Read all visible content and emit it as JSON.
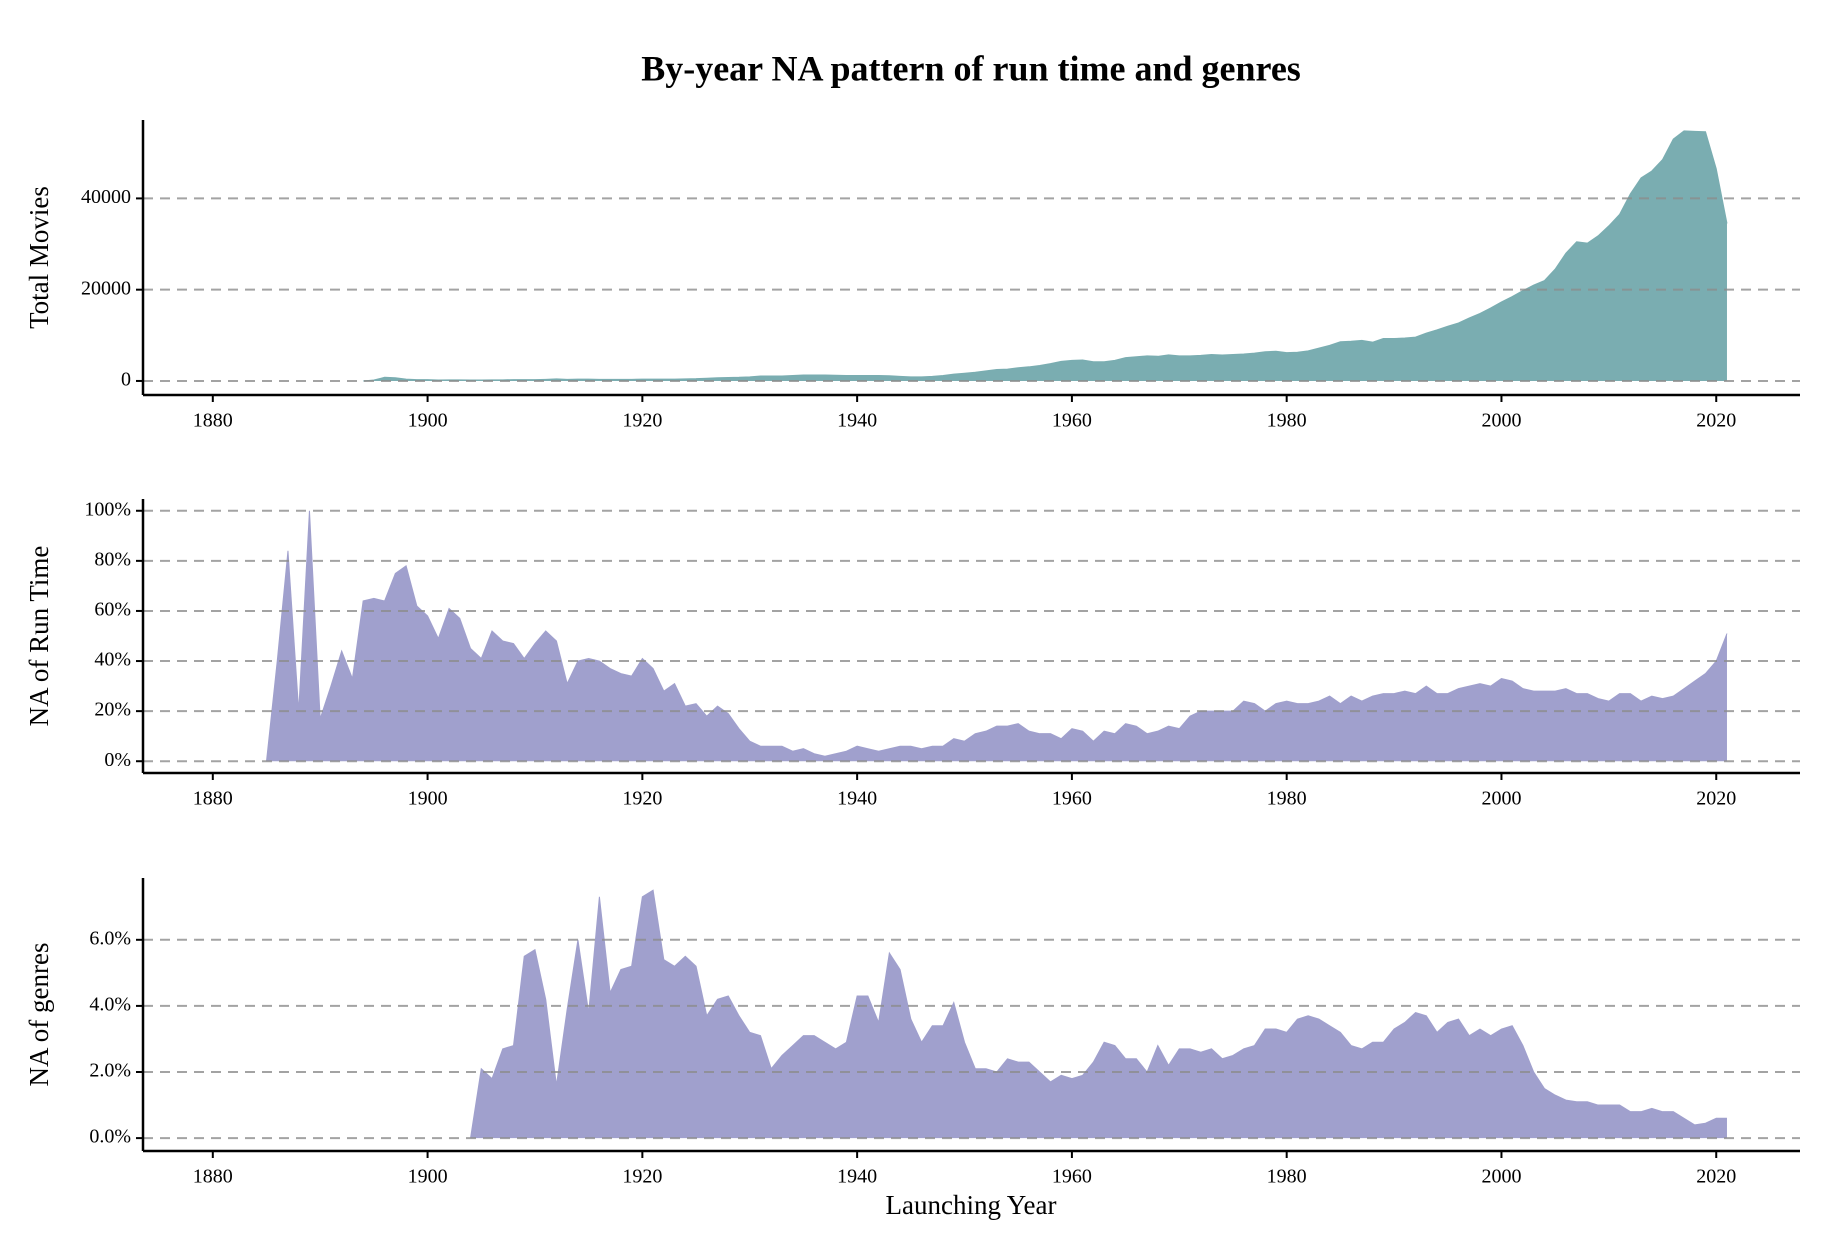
{
  "chart_data": [
    {
      "type": "area",
      "title": "By-year NA pattern of run time and genres",
      "ylabel": "Total Movies",
      "color": "#7aadb1",
      "grid": true,
      "x": [
        1894,
        1895,
        1896,
        1897,
        1898,
        1899,
        1900,
        1901,
        1902,
        1903,
        1904,
        1905,
        1906,
        1907,
        1908,
        1909,
        1910,
        1911,
        1912,
        1913,
        1914,
        1915,
        1916,
        1917,
        1918,
        1919,
        1920,
        1921,
        1922,
        1923,
        1924,
        1925,
        1926,
        1927,
        1928,
        1929,
        1930,
        1931,
        1932,
        1933,
        1934,
        1935,
        1936,
        1937,
        1938,
        1939,
        1940,
        1941,
        1942,
        1943,
        1944,
        1945,
        1946,
        1947,
        1948,
        1949,
        1950,
        1951,
        1952,
        1953,
        1954,
        1955,
        1956,
        1957,
        1958,
        1959,
        1960,
        1961,
        1962,
        1963,
        1964,
        1965,
        1966,
        1967,
        1968,
        1969,
        1970,
        1971,
        1972,
        1973,
        1974,
        1975,
        1976,
        1977,
        1978,
        1979,
        1980,
        1981,
        1982,
        1983,
        1984,
        1985,
        1986,
        1987,
        1988,
        1989,
        1990,
        1991,
        1992,
        1993,
        1994,
        1995,
        1996,
        1997,
        1998,
        1999,
        2000,
        2001,
        2002,
        2003,
        2004,
        2005,
        2006,
        2007,
        2008,
        2009,
        2010,
        2011,
        2012,
        2013,
        2014,
        2015,
        2016,
        2017,
        2018,
        2019,
        2020,
        2021
      ],
      "values": [
        0,
        200,
        800,
        700,
        400,
        300,
        300,
        200,
        250,
        250,
        200,
        200,
        250,
        250,
        300,
        300,
        300,
        350,
        450,
        350,
        400,
        400,
        350,
        350,
        350,
        350,
        400,
        400,
        400,
        400,
        450,
        500,
        600,
        700,
        750,
        800,
        900,
        1100,
        1100,
        1100,
        1200,
        1300,
        1300,
        1300,
        1250,
        1200,
        1200,
        1200,
        1200,
        1150,
        1000,
        900,
        900,
        1000,
        1200,
        1500,
        1700,
        1900,
        2200,
        2500,
        2600,
        2900,
        3100,
        3400,
        3800,
        4300,
        4500,
        4600,
        4200,
        4200,
        4500,
        5100,
        5300,
        5500,
        5400,
        5700,
        5500,
        5500,
        5600,
        5800,
        5700,
        5800,
        5900,
        6100,
        6400,
        6500,
        6200,
        6300,
        6600,
        7200,
        7800,
        8600,
        8700,
        8900,
        8500,
        9300,
        9300,
        9400,
        9600,
        10500,
        11200,
        12000,
        12700,
        13800,
        14800,
        16000,
        17300,
        18500,
        19800,
        21000,
        22000,
        24500,
        28000,
        30500,
        30200,
        31800,
        34000,
        36500,
        41000,
        44500,
        46000,
        48500,
        53000,
        54800,
        54700,
        54600,
        46500,
        34500
      ],
      "xlim": [
        1873.5,
        2027.8
      ],
      "xticks": [
        1880,
        1900,
        1920,
        1940,
        1960,
        1980,
        2000,
        2020
      ],
      "ylim": [
        -3077,
        57180
      ],
      "yticks": [
        0,
        20000,
        40000
      ]
    },
    {
      "type": "area",
      "ylabel": "NA of Run Time",
      "color": "#a0a0cd",
      "grid": true,
      "x": [
        1885,
        1886,
        1887,
        1888,
        1889,
        1890,
        1891,
        1892,
        1893,
        1894,
        1895,
        1896,
        1897,
        1898,
        1899,
        1900,
        1901,
        1902,
        1903,
        1904,
        1905,
        1906,
        1907,
        1908,
        1909,
        1910,
        1911,
        1912,
        1913,
        1914,
        1915,
        1916,
        1917,
        1918,
        1919,
        1920,
        1921,
        1922,
        1923,
        1924,
        1925,
        1926,
        1927,
        1928,
        1929,
        1930,
        1931,
        1932,
        1933,
        1934,
        1935,
        1936,
        1937,
        1938,
        1939,
        1940,
        1941,
        1942,
        1943,
        1944,
        1945,
        1946,
        1947,
        1948,
        1949,
        1950,
        1951,
        1952,
        1953,
        1954,
        1955,
        1956,
        1957,
        1958,
        1959,
        1960,
        1961,
        1962,
        1963,
        1964,
        1965,
        1966,
        1967,
        1968,
        1969,
        1970,
        1971,
        1972,
        1973,
        1974,
        1975,
        1976,
        1977,
        1978,
        1979,
        1980,
        1981,
        1982,
        1983,
        1984,
        1985,
        1986,
        1987,
        1988,
        1989,
        1990,
        1991,
        1992,
        1993,
        1994,
        1995,
        1996,
        1997,
        1998,
        1999,
        2000,
        2001,
        2002,
        2003,
        2004,
        2005,
        2006,
        2007,
        2008,
        2009,
        2010,
        2011,
        2012,
        2013,
        2014,
        2015,
        2016,
        2017,
        2018,
        2019,
        2020,
        2021
      ],
      "values": [
        0,
        40,
        84,
        20,
        100,
        17,
        30,
        44,
        33,
        64,
        65,
        64,
        75,
        78,
        62,
        58,
        49,
        61,
        57,
        45,
        41,
        52,
        48,
        47,
        41,
        47,
        52,
        48,
        31,
        40,
        41,
        40,
        37,
        35,
        34,
        41,
        37,
        28,
        31,
        22,
        23,
        18,
        22,
        19,
        13,
        8,
        6,
        6,
        6,
        4,
        5,
        3,
        2,
        3,
        4,
        6,
        5,
        4,
        5,
        6,
        6,
        5,
        6,
        6,
        9,
        8,
        11,
        12,
        14,
        14,
        15,
        12,
        11,
        11,
        9,
        13,
        12,
        8,
        12,
        11,
        15,
        14,
        11,
        12,
        14,
        13,
        18,
        20,
        20,
        20,
        20,
        24,
        23,
        20,
        23,
        24,
        23,
        23,
        24,
        26,
        23,
        26,
        24,
        26,
        27,
        27,
        28,
        27,
        30,
        27,
        27,
        29,
        30,
        31,
        30,
        33,
        32,
        29,
        28,
        28,
        28,
        29,
        27,
        27,
        25,
        24,
        27,
        27,
        24,
        26,
        25,
        26,
        29,
        32,
        35,
        40,
        51
      ],
      "xlim": [
        1873.5,
        2027.8
      ],
      "xticks": [
        1880,
        1900,
        1920,
        1940,
        1960,
        1980,
        2000,
        2020
      ],
      "ylim": [
        -4.7,
        104.7
      ],
      "yticks": [
        {
          "value": 0,
          "label": "0%"
        },
        {
          "value": 20,
          "label": "20%"
        },
        {
          "value": 40,
          "label": "40%"
        },
        {
          "value": 60,
          "label": "60%"
        },
        {
          "value": 80,
          "label": "80%"
        },
        {
          "value": 100,
          "label": "100%"
        }
      ]
    },
    {
      "type": "area",
      "ylabel": "NA of genres",
      "xlabel": "Launching Year",
      "color": "#a0a0cd",
      "grid": true,
      "x": [
        1904,
        1905,
        1906,
        1907,
        1908,
        1909,
        1910,
        1911,
        1912,
        1913,
        1914,
        1915,
        1916,
        1917,
        1918,
        1919,
        1920,
        1921,
        1922,
        1923,
        1924,
        1925,
        1926,
        1927,
        1928,
        1929,
        1930,
        1931,
        1932,
        1933,
        1934,
        1935,
        1936,
        1937,
        1938,
        1939,
        1940,
        1941,
        1942,
        1943,
        1944,
        1945,
        1946,
        1947,
        1948,
        1949,
        1950,
        1951,
        1952,
        1953,
        1954,
        1955,
        1956,
        1957,
        1958,
        1959,
        1960,
        1961,
        1962,
        1963,
        1964,
        1965,
        1966,
        1967,
        1968,
        1969,
        1970,
        1971,
        1972,
        1973,
        1974,
        1975,
        1976,
        1977,
        1978,
        1979,
        1980,
        1981,
        1982,
        1983,
        1984,
        1985,
        1986,
        1987,
        1988,
        1989,
        1990,
        1991,
        1992,
        1993,
        1994,
        1995,
        1996,
        1997,
        1998,
        1999,
        2000,
        2001,
        2002,
        2003,
        2004,
        2005,
        2006,
        2007,
        2008,
        2009,
        2010,
        2011,
        2012,
        2013,
        2014,
        2015,
        2016,
        2017,
        2018,
        2019,
        2020,
        2021
      ],
      "values": [
        0,
        2.1,
        1.8,
        2.7,
        2.8,
        5.5,
        5.7,
        4.2,
        1.6,
        3.9,
        6.0,
        3.8,
        7.3,
        4.4,
        5.1,
        5.2,
        7.3,
        7.5,
        5.4,
        5.2,
        5.5,
        5.2,
        3.7,
        4.2,
        4.3,
        3.7,
        3.2,
        3.1,
        2.1,
        2.5,
        2.8,
        3.1,
        3.1,
        2.9,
        2.7,
        2.9,
        4.3,
        4.3,
        3.5,
        5.6,
        5.1,
        3.6,
        2.9,
        3.4,
        3.4,
        4.1,
        2.9,
        2.1,
        2.1,
        2.0,
        2.4,
        2.3,
        2.3,
        2.0,
        1.7,
        1.9,
        1.8,
        1.9,
        2.3,
        2.9,
        2.8,
        2.4,
        2.4,
        2.0,
        2.8,
        2.2,
        2.7,
        2.7,
        2.6,
        2.7,
        2.4,
        2.5,
        2.7,
        2.8,
        3.3,
        3.3,
        3.2,
        3.6,
        3.7,
        3.6,
        3.4,
        3.2,
        2.8,
        2.7,
        2.9,
        2.9,
        3.3,
        3.5,
        3.8,
        3.7,
        3.2,
        3.5,
        3.6,
        3.1,
        3.3,
        3.1,
        3.3,
        3.4,
        2.8,
        2.0,
        1.5,
        1.3,
        1.15,
        1.1,
        1.1,
        1.0,
        1.0,
        1.0,
        0.8,
        0.8,
        0.9,
        0.8,
        0.8,
        0.6,
        0.4,
        0.45,
        0.6,
        0.6
      ],
      "xlim": [
        1873.5,
        2027.8
      ],
      "xticks": [
        1880,
        1900,
        1920,
        1940,
        1960,
        1980,
        2000,
        2020
      ],
      "ylim": [
        -0.39,
        7.87
      ],
      "yticks": [
        {
          "value": 0,
          "label": "0.0%"
        },
        {
          "value": 2,
          "label": "2.0%"
        },
        {
          "value": 4,
          "label": "4.0%"
        },
        {
          "value": 6,
          "label": "6.0%"
        }
      ]
    }
  ]
}
